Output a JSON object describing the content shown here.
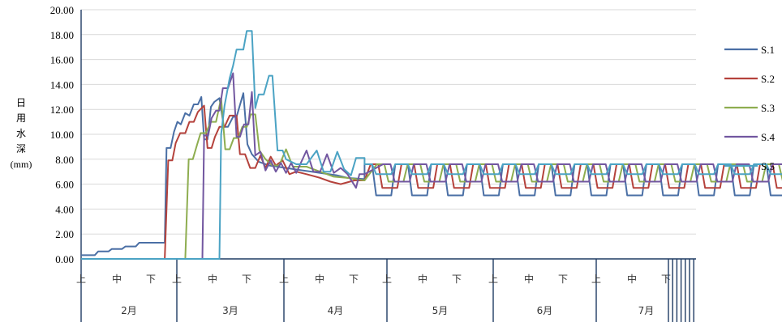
{
  "chart_data": {
    "type": "line",
    "ylabel_chars": [
      "日",
      "用",
      "水",
      "深"
    ],
    "ylabel_unit": "(mm)",
    "ylim": [
      0,
      20
    ],
    "yticks": [
      "0.00",
      "2.00",
      "4.00",
      "6.00",
      "8.00",
      "10.00",
      "12.00",
      "14.00",
      "16.00",
      "18.00",
      "20.00"
    ],
    "grid": true,
    "legend_position": "right",
    "x_periods": [
      "上",
      "中",
      "下"
    ],
    "months": [
      "2月",
      "3月",
      "4月",
      "5月",
      "6月",
      "7月"
    ],
    "x_unit": "period index (上/中/下 dekads from 2月上旬)",
    "series": [
      {
        "name": "S.1",
        "color": "#4A6FA5",
        "points": [
          [
            0,
            0.3
          ],
          [
            0.4,
            0.3
          ],
          [
            0.5,
            0.6
          ],
          [
            0.8,
            0.6
          ],
          [
            0.9,
            0.8
          ],
          [
            1.2,
            0.8
          ],
          [
            1.3,
            1.0
          ],
          [
            1.6,
            1.0
          ],
          [
            1.7,
            1.3
          ],
          [
            2.3,
            1.3
          ],
          [
            2.45,
            1.3
          ],
          [
            2.5,
            8.9
          ],
          [
            2.62,
            8.9
          ],
          [
            2.72,
            10.2
          ],
          [
            2.82,
            11.0
          ],
          [
            2.92,
            10.8
          ],
          [
            3.05,
            11.7
          ],
          [
            3.17,
            11.5
          ],
          [
            3.3,
            12.4
          ],
          [
            3.42,
            12.4
          ],
          [
            3.52,
            13.0
          ],
          [
            3.6,
            9.6
          ],
          [
            3.7,
            9.6
          ],
          [
            3.8,
            12.2
          ],
          [
            3.9,
            12.6
          ],
          [
            4.05,
            12.9
          ],
          [
            4.18,
            10.6
          ],
          [
            4.3,
            10.6
          ],
          [
            4.45,
            11.4
          ],
          [
            4.55,
            11.4
          ],
          [
            4.75,
            13.3
          ],
          [
            4.87,
            9.2
          ],
          [
            5.0,
            8.4
          ],
          [
            5.2,
            7.8
          ],
          [
            5.5,
            7.5
          ],
          [
            6.0,
            7.3
          ],
          [
            6.5,
            7.1
          ],
          [
            7.0,
            6.9
          ],
          [
            7.5,
            6.7
          ],
          [
            7.8,
            6.5
          ],
          [
            8.3,
            6.4
          ]
        ]
      },
      {
        "name": "S.2",
        "color": "#B5423C",
        "points": [
          [
            0,
            0
          ],
          [
            2.45,
            0
          ],
          [
            2.55,
            7.9
          ],
          [
            2.67,
            7.9
          ],
          [
            2.77,
            9.3
          ],
          [
            2.9,
            10.1
          ],
          [
            3.05,
            10.1
          ],
          [
            3.17,
            11.0
          ],
          [
            3.3,
            11.0
          ],
          [
            3.42,
            11.8
          ],
          [
            3.6,
            12.3
          ],
          [
            3.7,
            8.9
          ],
          [
            3.82,
            8.9
          ],
          [
            3.92,
            9.8
          ],
          [
            4.05,
            10.6
          ],
          [
            4.2,
            10.6
          ],
          [
            4.35,
            11.5
          ],
          [
            4.55,
            11.5
          ],
          [
            4.65,
            8.4
          ],
          [
            4.8,
            8.4
          ],
          [
            4.95,
            7.3
          ],
          [
            5.1,
            7.3
          ],
          [
            5.25,
            8.3
          ],
          [
            5.4,
            7.3
          ],
          [
            5.55,
            8.2
          ],
          [
            5.7,
            7.5
          ],
          [
            5.9,
            7.9
          ],
          [
            6.1,
            6.8
          ],
          [
            6.3,
            7.0
          ],
          [
            6.6,
            6.8
          ],
          [
            7.0,
            6.5
          ],
          [
            7.3,
            6.2
          ],
          [
            7.6,
            6.0
          ],
          [
            8.0,
            6.3
          ],
          [
            8.3,
            6.3
          ]
        ]
      },
      {
        "name": "S.3",
        "color": "#8EAD50",
        "points": [
          [
            0,
            0
          ],
          [
            3.05,
            0
          ],
          [
            3.15,
            8.0
          ],
          [
            3.27,
            8.0
          ],
          [
            3.4,
            9.2
          ],
          [
            3.5,
            10.1
          ],
          [
            3.65,
            10.1
          ],
          [
            3.8,
            11.0
          ],
          [
            3.95,
            11.0
          ],
          [
            4.1,
            12.9
          ],
          [
            4.22,
            8.8
          ],
          [
            4.35,
            8.8
          ],
          [
            4.47,
            9.7
          ],
          [
            4.6,
            9.7
          ],
          [
            4.72,
            10.6
          ],
          [
            4.85,
            10.6
          ],
          [
            4.97,
            11.6
          ],
          [
            5.1,
            11.6
          ],
          [
            5.22,
            8.7
          ],
          [
            5.4,
            8.0
          ],
          [
            5.6,
            7.5
          ],
          [
            5.8,
            7.5
          ],
          [
            6.0,
            8.8
          ],
          [
            6.2,
            7.4
          ],
          [
            6.6,
            7.4
          ],
          [
            7.0,
            7.0
          ],
          [
            7.4,
            6.6
          ],
          [
            7.8,
            6.5
          ],
          [
            8.3,
            6.3
          ]
        ]
      },
      {
        "name": "S.4",
        "color": "#7257A0",
        "points": [
          [
            0,
            0
          ],
          [
            3.55,
            0
          ],
          [
            3.6,
            9.9
          ],
          [
            3.72,
            9.9
          ],
          [
            3.82,
            11.3
          ],
          [
            3.95,
            11.9
          ],
          [
            4.05,
            11.9
          ],
          [
            4.15,
            13.7
          ],
          [
            4.3,
            13.7
          ],
          [
            4.45,
            14.9
          ],
          [
            4.55,
            9.8
          ],
          [
            4.65,
            9.8
          ],
          [
            4.77,
            10.8
          ],
          [
            4.9,
            10.8
          ],
          [
            5.0,
            13.4
          ],
          [
            5.1,
            8.3
          ],
          [
            5.25,
            8.6
          ],
          [
            5.4,
            7.1
          ],
          [
            5.55,
            7.9
          ],
          [
            5.7,
            7.0
          ],
          [
            5.85,
            7.7
          ],
          [
            6.0,
            6.9
          ],
          [
            6.15,
            7.7
          ],
          [
            6.3,
            6.9
          ],
          [
            6.6,
            8.7
          ],
          [
            6.8,
            7.0
          ],
          [
            7.0,
            7.0
          ],
          [
            7.2,
            8.4
          ],
          [
            7.4,
            6.9
          ],
          [
            7.6,
            7.3
          ],
          [
            7.8,
            6.8
          ],
          [
            8.05,
            5.7
          ],
          [
            8.15,
            6.8
          ],
          [
            8.3,
            6.8
          ]
        ]
      },
      {
        "name": "S.5",
        "color": "#4BA3C4",
        "points": [
          [
            0,
            0
          ],
          [
            4.05,
            0
          ],
          [
            4.1,
            10.0
          ],
          [
            4.2,
            12.3
          ],
          [
            4.35,
            14.5
          ],
          [
            4.45,
            15.5
          ],
          [
            4.55,
            16.8
          ],
          [
            4.75,
            16.8
          ],
          [
            4.85,
            18.3
          ],
          [
            5.0,
            18.3
          ],
          [
            5.1,
            12.1
          ],
          [
            5.2,
            13.2
          ],
          [
            5.35,
            13.2
          ],
          [
            5.5,
            14.7
          ],
          [
            5.6,
            14.7
          ],
          [
            5.75,
            8.7
          ],
          [
            5.9,
            8.7
          ],
          [
            6.0,
            8.0
          ],
          [
            6.3,
            7.6
          ],
          [
            6.6,
            7.6
          ],
          [
            6.9,
            8.7
          ],
          [
            7.1,
            7.0
          ],
          [
            7.3,
            7.0
          ],
          [
            7.5,
            8.6
          ],
          [
            7.7,
            7.2
          ],
          [
            7.9,
            6.7
          ],
          [
            8.05,
            8.1
          ],
          [
            8.2,
            8.1
          ],
          [
            8.3,
            8.1
          ]
        ]
      }
    ],
    "segments_after_apr20": [
      {
        "a": 5.1,
        "b": 7.6,
        "from": 8.3,
        "to": 22.9,
        "offset": 0.0
      },
      {
        "a": 5.7,
        "b": 7.6,
        "from": 8.3,
        "to": 22.9,
        "offset": 0.18
      },
      {
        "a": 6.2,
        "b": 7.6,
        "from": 8.3,
        "to": 22.9,
        "offset": 0.36
      },
      {
        "a": 6.2,
        "b": 7.6,
        "from": 8.3,
        "to": 22.9,
        "offset": 0.54
      },
      {
        "a": 6.8,
        "b": 7.6,
        "from": 8.3,
        "to": 22.9,
        "offset": 0.0
      }
    ],
    "tails": [
      [
        [
          22.9,
          6.3
        ],
        [
          23.6,
          4.6
        ],
        [
          24.6,
          4.6
        ],
        [
          24.8,
          3.0
        ],
        [
          26.0,
          3.0
        ],
        [
          26.1,
          1.5
        ],
        [
          27.2,
          1.5
        ],
        [
          27.3,
          0
        ],
        [
          29.5,
          0
        ]
      ],
      [
        [
          22.9,
          6.3
        ],
        [
          23.6,
          6.3
        ],
        [
          24.6,
          6.3
        ],
        [
          24.8,
          4.6
        ],
        [
          26.0,
          4.6
        ],
        [
          26.1,
          3.1
        ],
        [
          27.2,
          3.1
        ],
        [
          27.5,
          1.5
        ],
        [
          28.5,
          1.5
        ],
        [
          28.7,
          0
        ],
        [
          29.5,
          0
        ]
      ],
      [
        [
          22.9,
          6.3
        ],
        [
          23.6,
          4.9
        ],
        [
          24.6,
          4.9
        ],
        [
          24.8,
          4.6
        ],
        [
          26.0,
          4.6
        ],
        [
          26.1,
          3.1
        ],
        [
          27.2,
          3.1
        ],
        [
          27.5,
          1.5
        ],
        [
          28.6,
          1.5
        ],
        [
          28.75,
          0
        ],
        [
          29.5,
          0
        ]
      ],
      [
        [
          22.9,
          6.3
        ],
        [
          23.6,
          5.8
        ],
        [
          24.6,
          5.8
        ],
        [
          24.8,
          5.7
        ],
        [
          26.0,
          5.7
        ],
        [
          26.3,
          3.8
        ],
        [
          27.3,
          3.8
        ],
        [
          27.5,
          1.9
        ],
        [
          28.6,
          1.9
        ],
        [
          28.75,
          0
        ],
        [
          29.5,
          0
        ]
      ],
      [
        [
          22.9,
          7.7
        ],
        [
          23.6,
          7.7
        ],
        [
          24.1,
          7.7
        ],
        [
          24.3,
          5.1
        ],
        [
          26.2,
          5.1
        ],
        [
          26.6,
          2.5
        ],
        [
          28.3,
          2.5
        ],
        [
          28.5,
          0
        ],
        [
          29.5,
          0
        ]
      ]
    ]
  }
}
